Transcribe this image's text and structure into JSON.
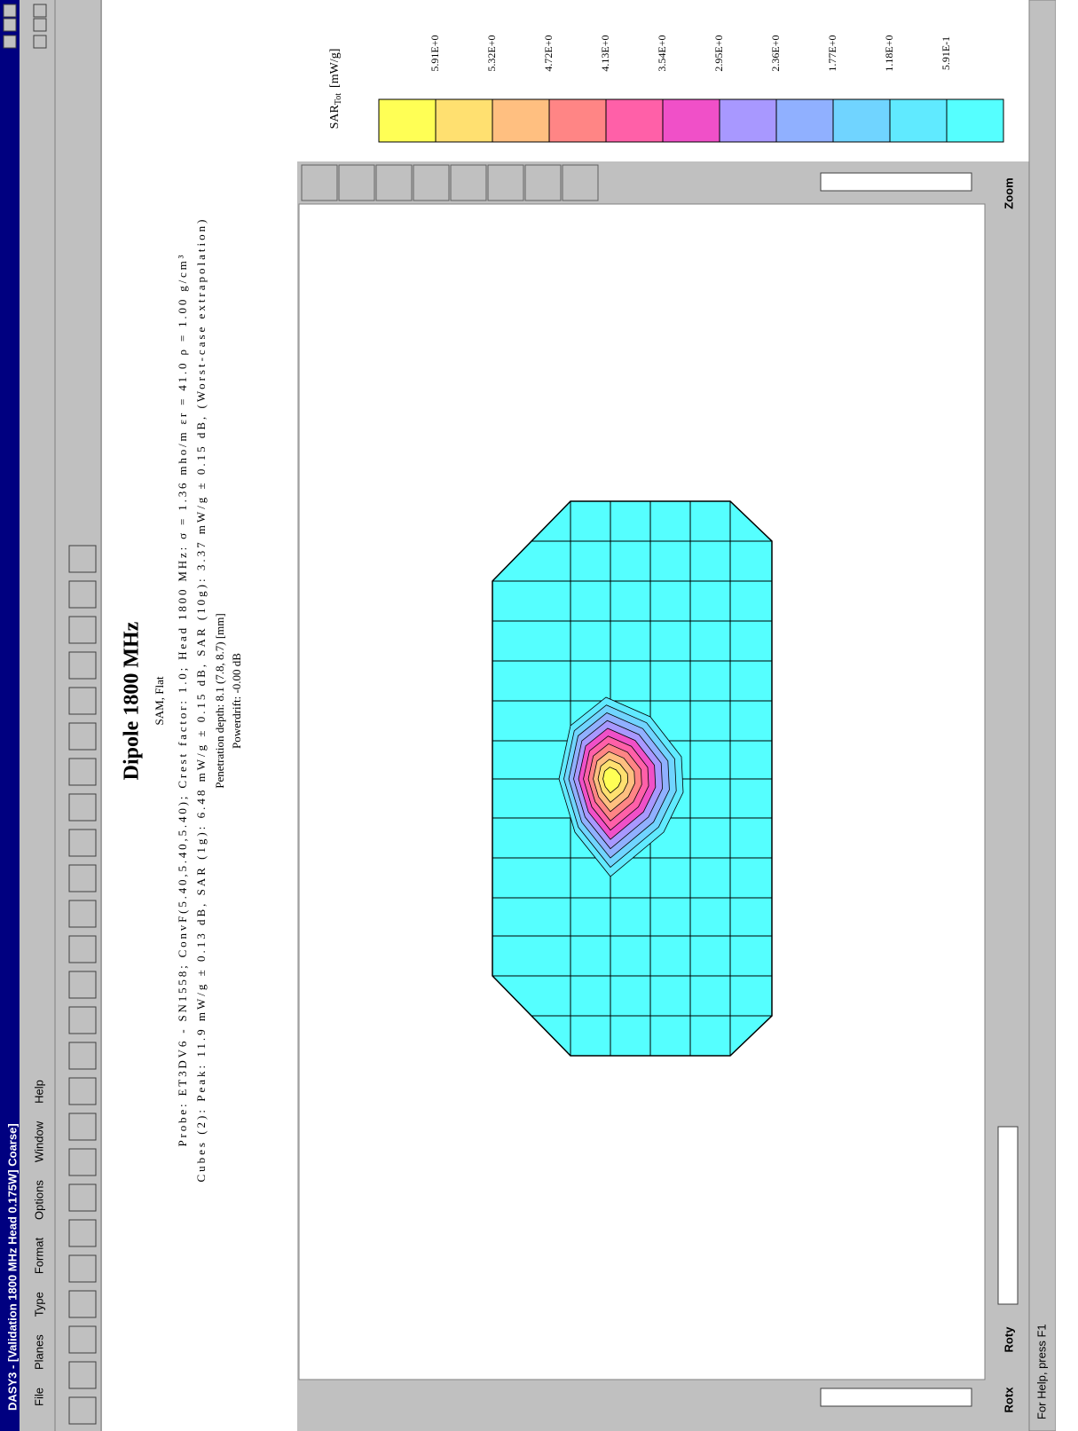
{
  "window": {
    "title": "DASY3 - [Validation 1800 MHz Head 0.175W]  Coarse]",
    "menu": [
      "File",
      "Planes",
      "Type",
      "Format",
      "Options",
      "Window",
      "Help"
    ]
  },
  "document": {
    "title": "Dipole 1800 MHz",
    "subtitle": "SAM, Flat",
    "lines": [
      "Probe: ET3DV6 - SN1558; ConvF(5.40,5.40,5.40); Crest factor: 1.0; Head 1800 MHz: σ = 1.36 mho/m εr = 41.0 ρ = 1.00 g/cm³",
      "Cubes (2): Peak: 11.9   mW/g ± 0.13 dB, SAR (1g): 6.48   mW/g ± 0.15 dB, SAR (10g): 3.37   mW/g ± 0.15 dB, (Worst-case extrapolation)",
      "Penetration depth: 8.1 (7.8, 8.7) [mm]",
      "Powerdrift: -0.00 dB"
    ]
  },
  "legend": {
    "label": "SAR",
    "subscript": "Tot",
    "unit": "[mW/g]",
    "levels": [
      "5.91E+0",
      "5.32E+0",
      "4.72E+0",
      "4.13E+0",
      "3.54E+0",
      "2.95E+0",
      "2.36E+0",
      "1.77E+0",
      "1.18E+0",
      "5.91E-1"
    ],
    "colors": [
      "#ffff55",
      "#ffe070",
      "#ffbf80",
      "#ff8585",
      "#ff60a8",
      "#f050c8",
      "#a898ff",
      "#90b0ff",
      "#70d4ff",
      "#60eaff",
      "#55ffff"
    ]
  },
  "controls": {
    "zoom": "Zoom",
    "rotx": "Rotx",
    "roty": "Roty"
  },
  "status": "For Help, press F1"
}
